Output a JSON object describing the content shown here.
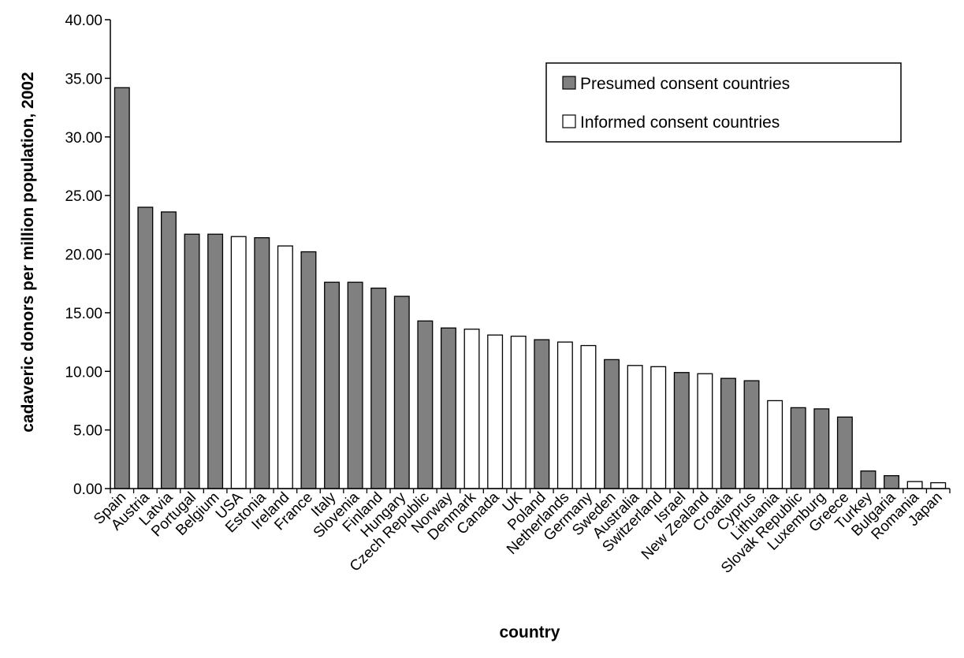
{
  "chart_data": {
    "type": "bar",
    "xlabel": "country",
    "ylabel": "cadaveric donors per million population, 2002",
    "ylim": [
      0,
      40
    ],
    "yticks": [
      "0.00",
      "5.00",
      "10.00",
      "15.00",
      "20.00",
      "25.00",
      "30.00",
      "35.00",
      "40.00"
    ],
    "grid": false,
    "legend_position": "top-right",
    "series": [
      {
        "name": "Presumed consent countries",
        "color": "#808080"
      },
      {
        "name": "Informed consent countries",
        "color": "#ffffff"
      }
    ],
    "categories": [
      "Spain",
      "Austria",
      "Latvia",
      "Portugal",
      "Belgium",
      "USA",
      "Estonia",
      "Ireland",
      "France",
      "Italy",
      "Slovenia",
      "Finland",
      "Hungary",
      "Czech Republic",
      "Norway",
      "Denmark",
      "Canada",
      "UK",
      "Poland",
      "Netherlands",
      "Germany",
      "Sweden",
      "Australia",
      "Switzerland",
      "Israel",
      "New Zealand",
      "Croatia",
      "Cyprus",
      "Lithuania",
      "Slovak Republic",
      "Luxemburg",
      "Greece",
      "Turkey",
      "Bulgaria",
      "Romania",
      "Japan"
    ],
    "values": [
      34.2,
      24.0,
      23.6,
      21.7,
      21.7,
      21.5,
      21.4,
      20.7,
      20.2,
      17.6,
      17.6,
      17.1,
      16.4,
      14.3,
      13.7,
      13.6,
      13.1,
      13.0,
      12.7,
      12.5,
      12.2,
      11.0,
      10.5,
      10.4,
      9.9,
      9.8,
      9.4,
      9.2,
      7.5,
      6.9,
      6.8,
      6.1,
      1.5,
      1.1,
      0.6,
      0.5
    ],
    "consent": [
      "presumed",
      "presumed",
      "presumed",
      "presumed",
      "presumed",
      "informed",
      "presumed",
      "informed",
      "presumed",
      "presumed",
      "presumed",
      "presumed",
      "presumed",
      "presumed",
      "presumed",
      "informed",
      "informed",
      "informed",
      "presumed",
      "informed",
      "informed",
      "presumed",
      "informed",
      "informed",
      "presumed",
      "informed",
      "presumed",
      "presumed",
      "informed",
      "presumed",
      "presumed",
      "presumed",
      "presumed",
      "presumed",
      "informed",
      "informed"
    ]
  }
}
